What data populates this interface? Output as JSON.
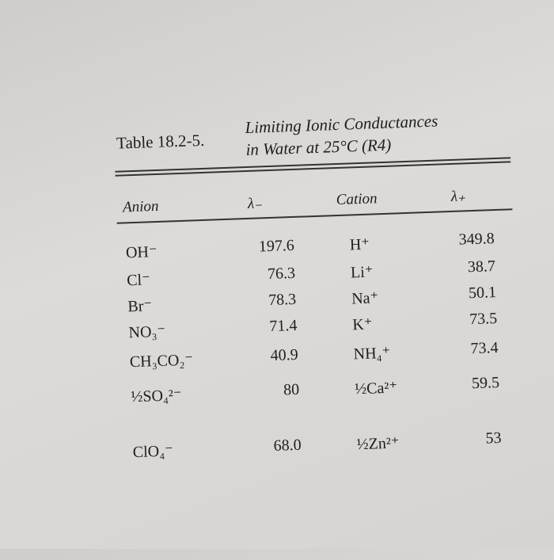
{
  "header": {
    "label": "Table 18.2-5.",
    "title_line1": "Limiting Ionic Conductances",
    "title_line2": "in Water at 25°C (R4)"
  },
  "table": {
    "columns": [
      "Anion",
      "λ₋",
      "Cation",
      "λ₊"
    ],
    "rows": [
      [
        "OH⁻",
        "197.6",
        "H⁺",
        "349.8"
      ],
      [
        "Cl⁻",
        "76.3",
        "Li⁺",
        "38.7"
      ],
      [
        "Br⁻",
        "78.3",
        "Na⁺",
        "50.1"
      ],
      [
        "NO₃⁻",
        "71.4",
        "K⁺",
        "73.5"
      ],
      [
        "CH₃CO₂⁻",
        "40.9",
        "NH₄⁺",
        "73.4"
      ],
      [
        "½SO₄²⁻",
        "80",
        "½Ca²⁺",
        "59.5"
      ],
      [
        "ClO₄⁻",
        "68.0",
        "½Zn²⁺",
        "53"
      ]
    ]
  }
}
